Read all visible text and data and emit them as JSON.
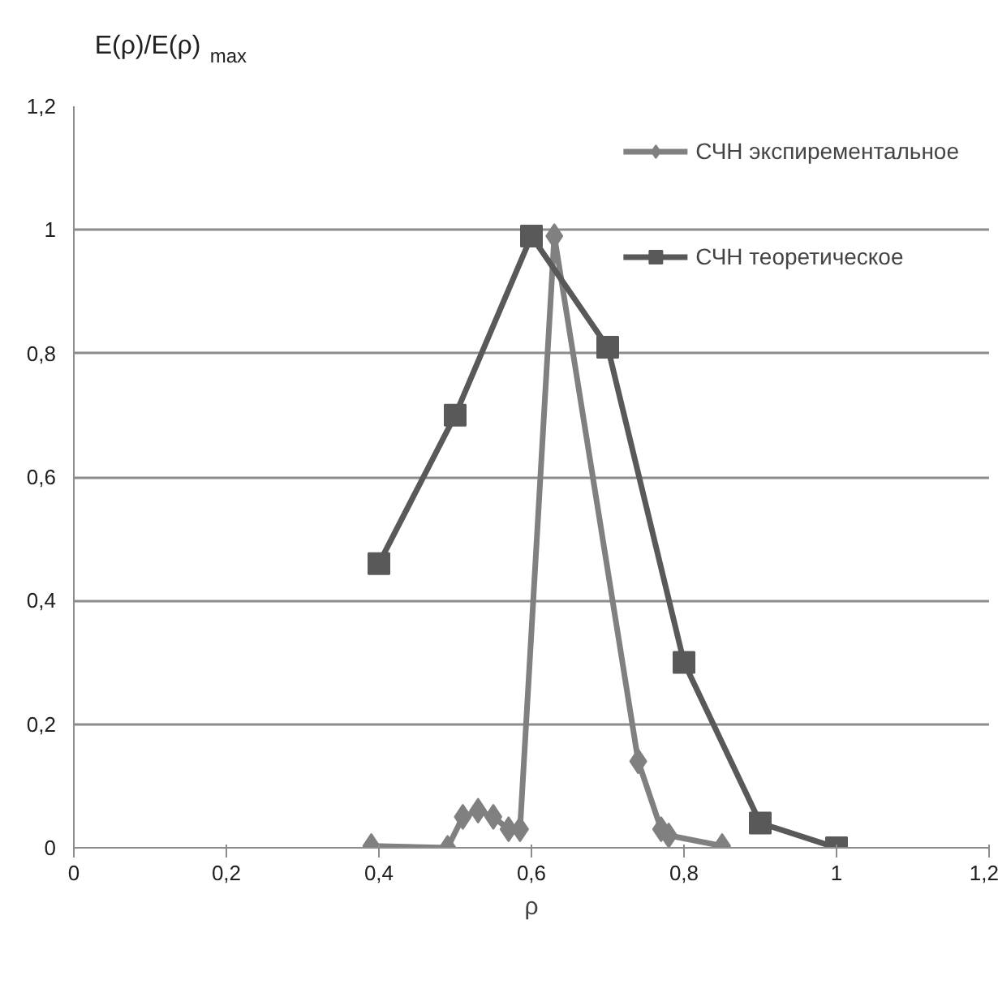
{
  "chart_data": {
    "type": "line",
    "ylabel": "E(ρ)/E(ρ)$_{max}$",
    "xlabel": "ρ",
    "xlim": [
      0,
      1.2
    ],
    "xticks": [
      {
        "value": 0,
        "label": "0"
      },
      {
        "value": 0.2,
        "label": "0,2"
      },
      {
        "value": 0.4,
        "label": "0,4"
      },
      {
        "value": 0.6,
        "label": "0,6"
      },
      {
        "value": 0.8,
        "label": "0,8"
      },
      {
        "value": 1,
        "label": "1"
      },
      {
        "value": 1.2,
        "label": "1,2"
      }
    ],
    "ylim": [
      0,
      1.2
    ],
    "yticks": [
      {
        "value": 0,
        "label": "0"
      },
      {
        "value": 0.2,
        "label": "0,2"
      },
      {
        "value": 0.4,
        "label": "0,4"
      },
      {
        "value": 0.6,
        "label": "0,6"
      },
      {
        "value": 0.8,
        "label": "0,8"
      },
      {
        "value": 1,
        "label": "1"
      },
      {
        "value": 1.2,
        "label": "1,2"
      }
    ],
    "grid": "y",
    "legend": "top right",
    "line_style": "solid",
    "series": [
      {
        "name": "СЧН экспирементальное",
        "color": "#808080",
        "marker": "diamond",
        "x": [
          0.39,
          0.49,
          0.51,
          0.53,
          0.55,
          0.57,
          0.585,
          0.63,
          0.74,
          0.77,
          0.78,
          0.85
        ],
        "values": [
          0.003,
          0.0,
          0.05,
          0.06,
          0.05,
          0.03,
          0.03,
          0.99,
          0.14,
          0.03,
          0.02,
          0.003
        ]
      },
      {
        "name": "СЧН теоретическое",
        "color": "#595959",
        "marker": "square",
        "x": [
          0.4,
          0.5,
          0.6,
          0.7,
          0.8,
          0.9,
          1.0
        ],
        "values": [
          0.46,
          0.7,
          0.99,
          0.81,
          0.3,
          0.04,
          0.0
        ]
      }
    ]
  }
}
